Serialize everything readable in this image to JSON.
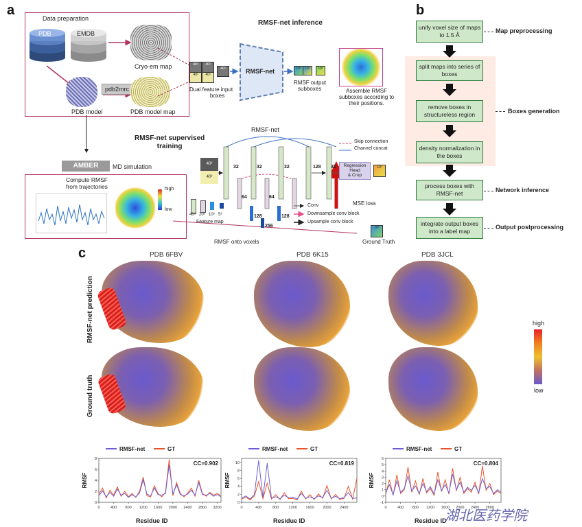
{
  "panels": {
    "a": "a",
    "b": "b",
    "c": "c"
  },
  "a": {
    "data_prep": "Data preparation",
    "pdb": "PDB",
    "emdb": "EMDB",
    "cryo_em_map": "Cryo-em map",
    "pdb2mrc": "pdb2mrc",
    "pdb_model": "PDB model",
    "pdb_model_map": "PDB model map",
    "inference_title": "RMSF-net inference",
    "dual_input_l1": "Dual feature input",
    "dual_input_l2": "boxes",
    "rmsf_net": "RMSF-net",
    "output_l1": "RMSF output",
    "output_l2": "subboxes",
    "assemble_l1": "Assemble RMSF",
    "assemble_l2": "subboxes according to",
    "assemble_l3": "their positions.",
    "amber": "AMBER",
    "md_sim": "MD simulation",
    "compute_l1": "Compute RMSF",
    "compute_l2": "from trajectories",
    "high": "high",
    "low": "low",
    "supervised_l1": "RMSF-net supervised",
    "supervised_l2": "training",
    "net_name": "RMSF-net",
    "skip": "Skip connection",
    "concat": "Channel concat",
    "regression_l1": "Regression",
    "regression_l2": "Head",
    "regression_l3": "& Crop",
    "mse": "MSE loss",
    "conv": "Conv",
    "down": "Downsample conv block",
    "up": "Upsample conv block",
    "feature_map": "Feature map",
    "fm_sizes": [
      "40³",
      "20³",
      "10³",
      "5³"
    ],
    "ch32": "32",
    "ch64": "64",
    "ch128": "128",
    "ch256": "256",
    "cube40": "40³",
    "cube10": "10³",
    "rmsf_voxels": "RMSF onto voxels",
    "ground_truth": "Ground Truth"
  },
  "b": {
    "steps": [
      "unify voxel size of maps to 1.5 Å",
      "split maps into series of boxes",
      "remove boxes in structureless region",
      "density normalization in the boxes",
      "process boxes with RMSF-net",
      "integrate output boxes into a label map"
    ],
    "labels": [
      "Map preprocessing",
      "Boxes generation",
      "Network inference",
      "Output postprocessing"
    ]
  },
  "c": {
    "columns": [
      "PDB 6FBV",
      "PDB 6K15",
      "PDB 3JCL"
    ],
    "rows": [
      "RMSF-net prediction",
      "Ground truth"
    ],
    "scale_high": "high",
    "scale_low": "low",
    "legend_net": "RMSF-net",
    "legend_gt": "GT",
    "ylabel": "RMSF",
    "xlabel": "Residue ID",
    "watermark": "湖北医药学院"
  },
  "colors": {
    "net": "#6b5fd3",
    "gt": "#e8532a",
    "box_green": "#cfe8c9",
    "pink_bg": "#fdebe4",
    "frame": "#b03060"
  },
  "chart_data": [
    {
      "type": "line",
      "title": "CC=0.902",
      "xlabel": "Residue ID",
      "ylabel": "RMSF",
      "xlim": [
        0,
        3300
      ],
      "ylim": [
        0,
        8
      ],
      "xticks": [
        0,
        400,
        800,
        1200,
        1600,
        2000,
        2400,
        2800,
        3200
      ],
      "yticks": [
        0,
        2,
        4,
        6,
        8
      ],
      "series": [
        {
          "name": "RMSF-net",
          "x": [
            0,
            100,
            200,
            300,
            400,
            500,
            600,
            700,
            800,
            900,
            1000,
            1100,
            1200,
            1300,
            1400,
            1500,
            1600,
            1700,
            1800,
            1900,
            2000,
            2100,
            2200,
            2300,
            2400,
            2500,
            2600,
            2700,
            2800,
            2900,
            3000,
            3100,
            3200,
            3300
          ],
          "values": [
            1.2,
            2.1,
            1.0,
            1.8,
            1.1,
            2.4,
            1.3,
            1.6,
            0.9,
            1.4,
            1.0,
            1.7,
            4.1,
            1.5,
            1.2,
            2.6,
            1.4,
            1.3,
            1.6,
            6.8,
            1.5,
            3.2,
            1.4,
            1.2,
            1.5,
            2.2,
            1.3,
            3.6,
            1.4,
            1.3,
            1.6,
            1.1,
            1.4,
            1.0
          ]
        },
        {
          "name": "GT",
          "x": [
            0,
            100,
            200,
            300,
            400,
            500,
            600,
            700,
            800,
            900,
            1000,
            1100,
            1200,
            1300,
            1400,
            1500,
            1600,
            1700,
            1800,
            1900,
            2000,
            2100,
            2200,
            2300,
            2400,
            2500,
            2600,
            2700,
            2800,
            2900,
            3000,
            3100,
            3200,
            3300
          ],
          "values": [
            1.5,
            2.6,
            0.8,
            2.2,
            1.3,
            2.8,
            1.1,
            2.0,
            1.0,
            1.6,
            0.9,
            2.0,
            4.6,
            1.2,
            1.0,
            3.0,
            1.6,
            1.0,
            1.8,
            7.8,
            1.2,
            3.6,
            1.6,
            1.0,
            1.7,
            2.6,
            1.1,
            4.0,
            1.6,
            1.1,
            1.8,
            1.3,
            1.6,
            1.2
          ]
        }
      ]
    },
    {
      "type": "line",
      "title": "CC=0.819",
      "xlabel": "Residue ID",
      "ylabel": "RMSF",
      "xlim": [
        0,
        2700
      ],
      "ylim": [
        0,
        11
      ],
      "xticks": [
        0,
        400,
        800,
        1200,
        1600,
        2000,
        2400
      ],
      "yticks": [
        0,
        2,
        4,
        6,
        8,
        10
      ],
      "series": [
        {
          "name": "RMSF-net",
          "x": [
            0,
            100,
            200,
            300,
            400,
            500,
            600,
            700,
            800,
            900,
            1000,
            1100,
            1200,
            1300,
            1400,
            1500,
            1600,
            1700,
            1800,
            1900,
            2000,
            2100,
            2200,
            2300,
            2400,
            2500,
            2600,
            2700
          ],
          "values": [
            1.0,
            1.6,
            0.8,
            2.0,
            10.5,
            1.2,
            9.8,
            1.0,
            1.4,
            0.9,
            1.8,
            1.1,
            1.3,
            0.8,
            2.2,
            1.0,
            1.4,
            0.9,
            1.6,
            1.2,
            3.0,
            1.0,
            1.5,
            0.9,
            1.2,
            2.4,
            1.0,
            1.1
          ]
        },
        {
          "name": "GT",
          "x": [
            0,
            100,
            200,
            300,
            400,
            500,
            600,
            700,
            800,
            900,
            1000,
            1100,
            1200,
            1300,
            1400,
            1500,
            1600,
            1700,
            1800,
            1900,
            2000,
            2100,
            2200,
            2300,
            2400,
            2500,
            2600,
            2700
          ],
          "values": [
            0.8,
            1.3,
            0.6,
            1.6,
            5.2,
            0.9,
            4.8,
            0.8,
            1.9,
            0.7,
            2.4,
            0.9,
            1.0,
            0.6,
            2.8,
            0.8,
            1.9,
            0.7,
            2.1,
            1.0,
            4.2,
            0.8,
            2.0,
            0.7,
            1.0,
            4.0,
            0.8,
            6.0
          ]
        }
      ]
    },
    {
      "type": "line",
      "title": "CC=0.804",
      "xlabel": "Residue ID",
      "ylabel": "RMSF",
      "xlim": [
        0,
        3100
      ],
      "ylim": [
        -1,
        6
      ],
      "xticks": [
        0,
        400,
        800,
        1200,
        1600,
        2000,
        2400,
        2800
      ],
      "yticks": [
        -1,
        0,
        1,
        2,
        3,
        4,
        5,
        6
      ],
      "series": [
        {
          "name": "RMSF-net",
          "x": [
            0,
            100,
            200,
            300,
            400,
            500,
            600,
            700,
            800,
            900,
            1000,
            1100,
            1200,
            1300,
            1400,
            1500,
            1600,
            1700,
            1800,
            1900,
            2000,
            2100,
            2200,
            2300,
            2400,
            2500,
            2600,
            2700,
            2800,
            2900,
            3000,
            3100
          ],
          "values": [
            0.5,
            1.8,
            0.2,
            2.4,
            0.6,
            1.2,
            3.2,
            0.8,
            1.6,
            0.4,
            2.0,
            0.7,
            1.5,
            0.3,
            2.6,
            0.9,
            1.8,
            0.5,
            3.5,
            1.0,
            2.2,
            0.6,
            1.4,
            0.9,
            1.7,
            0.5,
            2.8,
            1.2,
            1.5,
            0.4,
            1.0,
            0.6
          ]
        },
        {
          "name": "GT",
          "x": [
            0,
            100,
            200,
            300,
            400,
            500,
            600,
            700,
            800,
            900,
            1000,
            1100,
            1200,
            1300,
            1400,
            1500,
            1600,
            1700,
            1800,
            1900,
            2000,
            2100,
            2200,
            2300,
            2400,
            2500,
            2600,
            2700,
            2800,
            2900,
            3000,
            3100
          ],
          "values": [
            0.3,
            2.6,
            0.1,
            3.4,
            0.4,
            1.0,
            4.6,
            0.6,
            2.4,
            0.2,
            2.8,
            0.5,
            1.2,
            0.1,
            3.8,
            0.7,
            2.6,
            0.3,
            4.4,
            0.8,
            3.0,
            0.4,
            1.2,
            0.6,
            2.2,
            0.3,
            4.8,
            0.9,
            2.0,
            0.2,
            0.8,
            0.4
          ]
        }
      ]
    }
  ]
}
